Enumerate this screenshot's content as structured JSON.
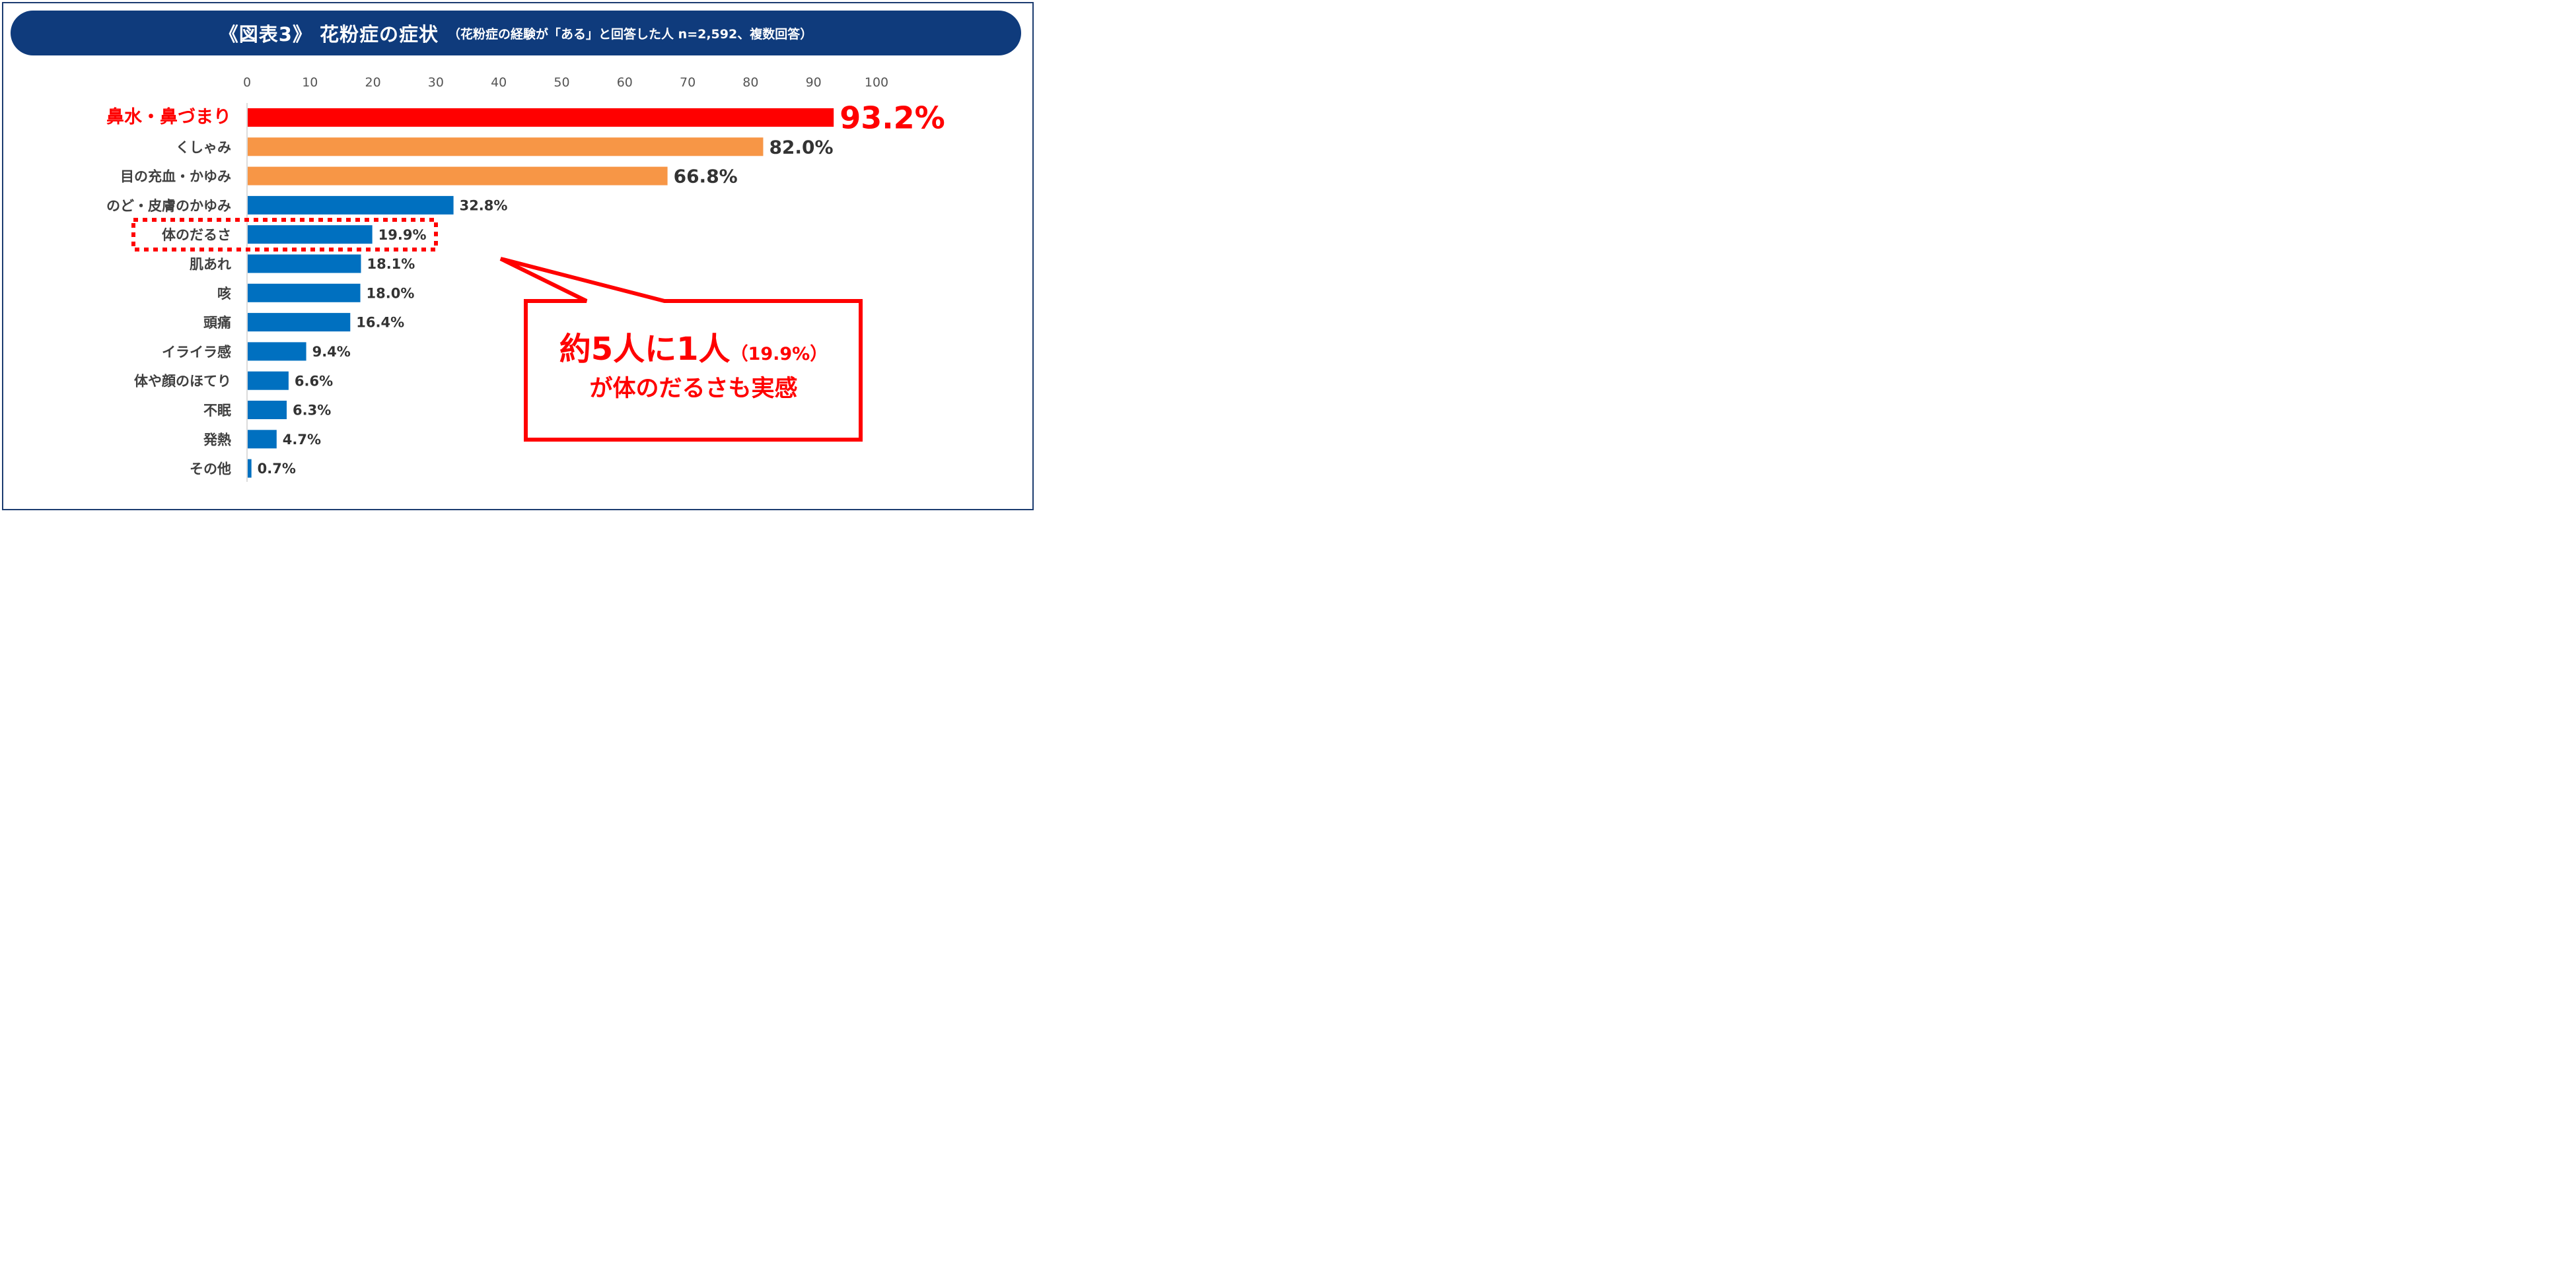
{
  "title": {
    "main": "《図表3》 花粉症の症状",
    "sub": "（花粉症の経験が「ある」と回答した人 n=2,592、複数回答）"
  },
  "colors": {
    "title_bg": "#0f3b7c",
    "top": "#ff0000",
    "orange": "#f79646",
    "blue": "#0070c0",
    "highlight": "#ff0000"
  },
  "chart_data": {
    "type": "bar",
    "orientation": "horizontal",
    "xlim": [
      0,
      100
    ],
    "x_ticks": [
      "0",
      "10",
      "20",
      "30",
      "40",
      "50",
      "60",
      "70",
      "80",
      "90",
      "100"
    ],
    "categories": [
      "鼻水・鼻づまり",
      "くしゃみ",
      "目の充血・かゆみ",
      "のど・皮膚のかゆみ",
      "体のだるさ",
      "肌あれ",
      "咳",
      "頭痛",
      "イライラ感",
      "体や顔のほてり",
      "不眠",
      "発熱",
      "その他"
    ],
    "values": [
      93.2,
      82.0,
      66.8,
      32.8,
      19.9,
      18.1,
      18.0,
      16.4,
      9.4,
      6.6,
      6.3,
      4.7,
      0.7
    ],
    "value_labels": [
      "93.2%",
      "82.0%",
      "66.8%",
      "32.8%",
      "19.9%",
      "18.1%",
      "18.0%",
      "16.4%",
      "9.4%",
      "6.6%",
      "6.3%",
      "4.7%",
      "0.7%"
    ],
    "bar_colors": [
      "#ff0000",
      "#f79646",
      "#f79646",
      "#0070c0",
      "#0070c0",
      "#0070c0",
      "#0070c0",
      "#0070c0",
      "#0070c0",
      "#0070c0",
      "#0070c0",
      "#0070c0",
      "#0070c0"
    ],
    "highlighted_category": "体のだるさ",
    "xlabel": "",
    "ylabel": "",
    "grid": false,
    "legend": "none"
  },
  "callout": {
    "main": "約5人に1人",
    "paren": "（19.9%）",
    "line2": "が体のだるさも実感"
  }
}
